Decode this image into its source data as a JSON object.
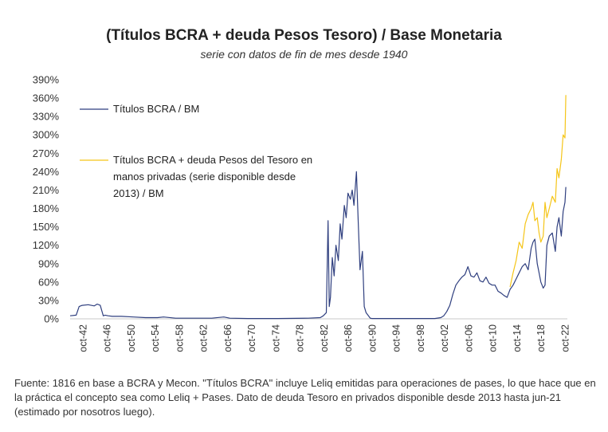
{
  "chart_data": {
    "type": "line",
    "title": "(Títulos BCRA + deuda Pesos Tesoro) / Base Monetaria",
    "subtitle": "serie con datos de fin de mes desde 1940",
    "xlabel": "",
    "ylabel": "",
    "xlim": [
      1940.5,
      2023.0
    ],
    "ylim": [
      0,
      390
    ],
    "y_ticks": [
      0,
      30,
      60,
      90,
      120,
      150,
      180,
      210,
      240,
      270,
      300,
      330,
      360,
      390
    ],
    "y_tick_labels": [
      "0%",
      "30%",
      "60%",
      "90%",
      "120%",
      "150%",
      "180%",
      "210%",
      "240%",
      "270%",
      "300%",
      "330%",
      "360%",
      "390%"
    ],
    "x_ticks": [
      1942.75,
      1946.75,
      1950.75,
      1954.75,
      1958.75,
      1962.75,
      1966.75,
      1970.75,
      1974.75,
      1978.75,
      1982.75,
      1986.75,
      1990.75,
      1994.75,
      1998.75,
      2002.75,
      2006.75,
      2010.75,
      2014.75,
      2018.75,
      2022.75
    ],
    "x_tick_labels": [
      "oct-42",
      "oct-46",
      "oct-50",
      "oct-54",
      "oct-58",
      "oct-62",
      "oct-66",
      "oct-70",
      "oct-74",
      "oct-78",
      "oct-82",
      "oct-86",
      "oct-90",
      "oct-94",
      "oct-98",
      "oct-02",
      "oct-06",
      "oct-10",
      "oct-14",
      "oct-18",
      "oct-22"
    ],
    "grid": false,
    "legend": "top-left",
    "series": [
      {
        "name": "Títulos BCRA / BM",
        "color": "#2f3f7f",
        "x": [
          1940.5,
          1941.5,
          1942.0,
          1942.5,
          1943.5,
          1944.5,
          1945.0,
          1945.5,
          1946.0,
          1946.3,
          1946.8,
          1947.5,
          1949.0,
          1951.0,
          1953.0,
          1955.0,
          1956.0,
          1958.0,
          1960.0,
          1964.0,
          1966.0,
          1967.0,
          1970.0,
          1975.0,
          1980.0,
          1982.0,
          1982.5,
          1983.0,
          1983.3,
          1983.5,
          1983.7,
          1984.0,
          1984.3,
          1984.6,
          1985.0,
          1985.3,
          1985.6,
          1986.0,
          1986.3,
          1986.6,
          1987.0,
          1987.3,
          1987.6,
          1988.0,
          1988.3,
          1988.6,
          1989.0,
          1989.3,
          1989.6,
          1990.0,
          1990.3,
          1990.6,
          1991.0,
          1992.0,
          1995.0,
          1998.0,
          2001.0,
          2002.0,
          2002.5,
          2003.0,
          2003.5,
          2004.0,
          2004.5,
          2005.0,
          2005.5,
          2006.0,
          2006.5,
          2007.0,
          2007.5,
          2008.0,
          2008.5,
          2009.0,
          2009.5,
          2010.0,
          2010.5,
          2011.0,
          2011.5,
          2012.0,
          2012.5,
          2013.0,
          2013.5,
          2014.0,
          2014.5,
          2015.0,
          2015.5,
          2016.0,
          2016.5,
          2017.0,
          2017.3,
          2017.6,
          2018.0,
          2018.3,
          2018.6,
          2019.0,
          2019.3,
          2019.6,
          2020.0,
          2020.5,
          2021.0,
          2021.3,
          2021.6,
          2022.0,
          2022.3,
          2022.6,
          2022.75
        ],
        "values": [
          5,
          6,
          20,
          22,
          23,
          21,
          24,
          22,
          5,
          6,
          5,
          4,
          4,
          3,
          2,
          2,
          3,
          1,
          1,
          1,
          3,
          1,
          0.5,
          0.5,
          1,
          2,
          5,
          10,
          160,
          20,
          35,
          100,
          70,
          120,
          95,
          155,
          130,
          185,
          165,
          205,
          195,
          210,
          185,
          240,
          160,
          80,
          110,
          20,
          10,
          5,
          1,
          0.5,
          0.5,
          0.5,
          0.5,
          0.5,
          0.5,
          2,
          5,
          12,
          22,
          40,
          55,
          62,
          68,
          72,
          85,
          70,
          68,
          75,
          62,
          60,
          68,
          58,
          55,
          55,
          45,
          42,
          38,
          35,
          48,
          55,
          65,
          75,
          85,
          90,
          80,
          115,
          125,
          130,
          90,
          75,
          60,
          50,
          55,
          120,
          135,
          140,
          110,
          150,
          165,
          135,
          175,
          190,
          215
        ]
      },
      {
        "name": "Títulos BCRA + deuda Pesos del Tesoro en manos privadas (serie disponible desde 2013) / BM",
        "color": "#f5c518",
        "x": [
          2013.5,
          2014.0,
          2014.5,
          2015.0,
          2015.5,
          2016.0,
          2016.5,
          2017.0,
          2017.3,
          2017.6,
          2018.0,
          2018.3,
          2018.6,
          2019.0,
          2019.3,
          2019.6,
          2020.0,
          2020.5,
          2021.0,
          2021.3,
          2021.6,
          2022.0,
          2022.3,
          2022.6,
          2022.75
        ],
        "values": [
          52,
          75,
          95,
          125,
          115,
          155,
          170,
          180,
          190,
          160,
          165,
          140,
          125,
          135,
          190,
          165,
          180,
          200,
          190,
          245,
          230,
          260,
          300,
          295,
          365
        ]
      }
    ]
  },
  "source_note": "Fuente: 1816 en base a BCRA y Mecon. \"Títulos BCRA\" incluye Leliq emitidas para operaciones de pases, lo que hace que en la práctica el concepto sea como Leliq + Pases. Dato de deuda Tesoro en privados disponible desde 2013 hasta jun-21 (estimado por nosotros luego)."
}
